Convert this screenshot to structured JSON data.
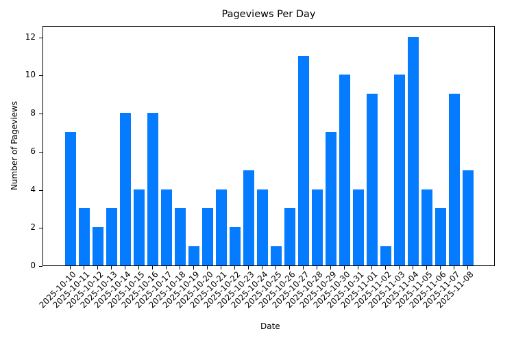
{
  "chart_data": {
    "type": "bar",
    "title": "Pageviews Per Day",
    "xlabel": "Date",
    "ylabel": "Number of Pageviews",
    "ylim": [
      0,
      12.6
    ],
    "yticks": [
      0,
      2,
      4,
      6,
      8,
      10,
      12
    ],
    "grid": false,
    "legend": null,
    "bar_color": "#057bff",
    "categories": [
      "2025-10-10",
      "2025-10-11",
      "2025-10-12",
      "2025-10-13",
      "2025-10-14",
      "2025-10-15",
      "2025-10-16",
      "2025-10-17",
      "2025-10-18",
      "2025-10-19",
      "2025-10-20",
      "2025-10-21",
      "2025-10-22",
      "2025-10-23",
      "2025-10-24",
      "2025-10-25",
      "2025-10-26",
      "2025-10-27",
      "2025-10-28",
      "2025-10-29",
      "2025-10-30",
      "2025-10-31",
      "2025-11-01",
      "2025-11-02",
      "2025-11-03",
      "2025-11-04",
      "2025-11-05",
      "2025-11-06",
      "2025-11-07",
      "2025-11-08"
    ],
    "values": [
      7,
      3,
      2,
      3,
      8,
      4,
      8,
      4,
      3,
      1,
      3,
      4,
      2,
      5,
      4,
      1,
      3,
      11,
      4,
      7,
      10,
      4,
      9,
      1,
      10,
      12,
      4,
      3,
      9,
      5
    ]
  }
}
